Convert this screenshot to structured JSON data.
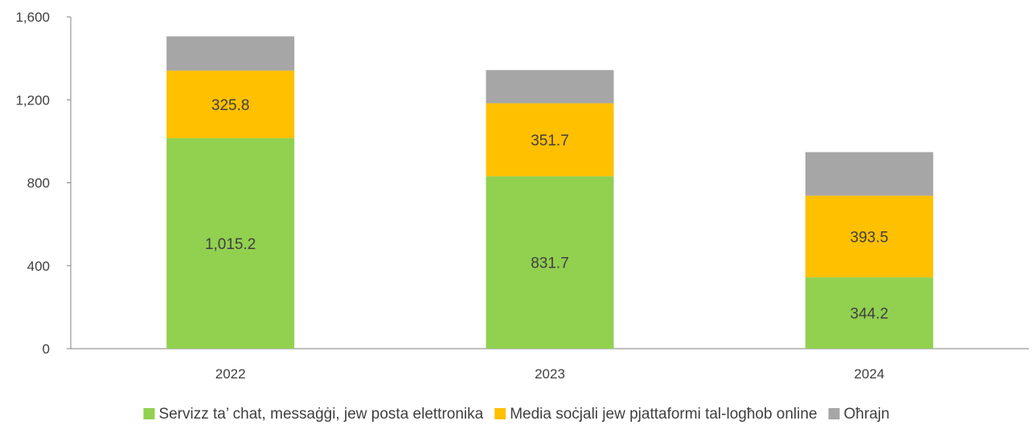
{
  "chart_data": {
    "type": "bar",
    "stacked": true,
    "categories": [
      "2022",
      "2023",
      "2024"
    ],
    "series": [
      {
        "name": "Servizz ta’ chat, messaġġi, jew posta elettronika",
        "values": [
          1015.2,
          831.7,
          344.2
        ],
        "color": "#92D050",
        "labels": [
          "1,015.2",
          "831.7",
          "344.2"
        ]
      },
      {
        "name": "Media soċjali jew pjattaformi tal-logħob online",
        "values": [
          325.8,
          351.7,
          393.5
        ],
        "color": "#FFC000",
        "labels": [
          "325.8",
          "351.7",
          "393.5"
        ]
      },
      {
        "name": "Oħrajn",
        "values": [
          165,
          160,
          210
        ],
        "color": "#A6A6A6",
        "labels": [
          "",
          "",
          ""
        ]
      }
    ],
    "ylim": [
      0,
      1600
    ],
    "yticks": [
      0,
      400,
      800,
      1200,
      1600
    ],
    "ytick_labels": [
      "0",
      "400",
      "800",
      "1,200",
      "1,600"
    ],
    "title": "",
    "xlabel": "",
    "ylabel": "",
    "grid": false,
    "legend_position": "bottom"
  }
}
